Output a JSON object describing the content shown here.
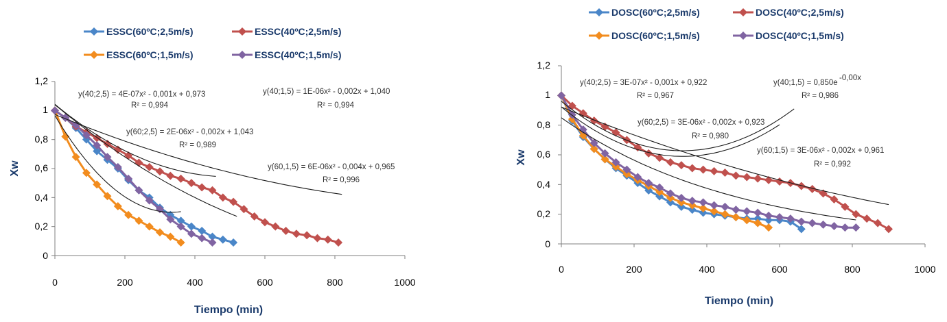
{
  "colors": {
    "blue": "#4a86c8",
    "red": "#c0504d",
    "orange": "#f28c1e",
    "purple": "#8064a2",
    "text": "#1a3a6b"
  },
  "chart_data": [
    {
      "type": "scatter",
      "xlabel": "Tiempo (min)",
      "ylabel": "Xw",
      "xlim": [
        0,
        1000
      ],
      "ylim": [
        0,
        1.2
      ],
      "xticks": [
        "0",
        "200",
        "400",
        "600",
        "800",
        "1000"
      ],
      "yticks": [
        "0",
        "0,2",
        "0,4",
        "0,6",
        "0,8",
        "1",
        "1,2"
      ],
      "legend": [
        [
          "ESSC(60ºC;2,5m/s)",
          "ESSC(40ºC;2,5m/s)"
        ],
        [
          "ESSC(60ºC;1,5m/s)",
          "ESSC(40ºC;1,5m/s)"
        ]
      ],
      "series": [
        {
          "name": "ESSC(60ºC;2,5m/s)",
          "color_key": "blue",
          "x": [
            0,
            30,
            60,
            90,
            120,
            150,
            180,
            210,
            240,
            270,
            300,
            330,
            360,
            390,
            420,
            450,
            480,
            510
          ],
          "y": [
            1,
            0.95,
            0.88,
            0.8,
            0.72,
            0.66,
            0.6,
            0.52,
            0.45,
            0.4,
            0.33,
            0.28,
            0.24,
            0.2,
            0.17,
            0.13,
            0.11,
            0.09
          ]
        },
        {
          "name": "ESSC(40ºC;2,5m/s)",
          "color_key": "red",
          "x": [
            0,
            30,
            60,
            90,
            120,
            150,
            180,
            210,
            240,
            270,
            300,
            330,
            360,
            390,
            420,
            450,
            480,
            510,
            540,
            570,
            600,
            630,
            660,
            690,
            720,
            750,
            780,
            810
          ],
          "y": [
            1,
            0.95,
            0.89,
            0.85,
            0.81,
            0.77,
            0.73,
            0.69,
            0.64,
            0.61,
            0.58,
            0.55,
            0.53,
            0.5,
            0.47,
            0.45,
            0.4,
            0.37,
            0.32,
            0.27,
            0.23,
            0.2,
            0.17,
            0.15,
            0.14,
            0.12,
            0.11,
            0.09
          ]
        },
        {
          "name": "ESSC(60ºC;1,5m/s)",
          "color_key": "orange",
          "x": [
            0,
            30,
            60,
            90,
            120,
            150,
            180,
            210,
            240,
            270,
            300,
            330,
            360
          ],
          "y": [
            1,
            0.82,
            0.68,
            0.57,
            0.49,
            0.41,
            0.34,
            0.28,
            0.24,
            0.2,
            0.16,
            0.13,
            0.09
          ]
        },
        {
          "name": "ESSC(40ºC;1,5m/s)",
          "color_key": "purple",
          "x": [
            0,
            30,
            60,
            90,
            120,
            150,
            180,
            210,
            240,
            270,
            300,
            330,
            360,
            390,
            420,
            450
          ],
          "y": [
            1,
            0.95,
            0.9,
            0.83,
            0.76,
            0.68,
            0.61,
            0.53,
            0.45,
            0.38,
            0.32,
            0.25,
            0.2,
            0.15,
            0.12,
            0.09
          ]
        }
      ],
      "equations": [
        {
          "text": "y(40;2,5) = 4E-07x² - 0,001x + 0,973",
          "r2": "R² = 0,994"
        },
        {
          "text": "y(40;1,5) = 1E-06x² - 0,002x + 1,040",
          "r2": "R² = 0,994"
        },
        {
          "text": "y(60;2,5) = 2E-06x² - 0,002x + 1,043",
          "r2": "R² = 0,989"
        },
        {
          "text": "y(60,1,5) = 6E-06x² - 0,004x + 0,965",
          "r2": "R² = 0,996"
        }
      ]
    },
    {
      "type": "scatter",
      "xlabel": "Tiempo (min)",
      "ylabel": "Xw",
      "xlim": [
        0,
        1000
      ],
      "ylim": [
        0,
        1.2
      ],
      "xticks": [
        "0",
        "200",
        "400",
        "600",
        "800",
        "1000"
      ],
      "yticks": [
        "0",
        "0,2",
        "0,4",
        "0,6",
        "0,8",
        "1",
        "1,2"
      ],
      "legend": [
        [
          "DOSC(60ºC;2,5m/s)",
          "DOSC(40ºC;2,5m/s)"
        ],
        [
          "DOSC(60ºC;1,5m/s)",
          "DOSC(40ºC;1,5m/s)"
        ]
      ],
      "series": [
        {
          "name": "DOSC(60ºC;2,5m/s)",
          "color_key": "blue",
          "x": [
            0,
            30,
            60,
            90,
            120,
            150,
            180,
            210,
            240,
            270,
            300,
            330,
            360,
            390,
            420,
            450,
            480,
            510,
            540,
            570,
            600,
            630,
            660
          ],
          "y": [
            1,
            0.83,
            0.72,
            0.64,
            0.57,
            0.51,
            0.46,
            0.41,
            0.36,
            0.32,
            0.28,
            0.25,
            0.23,
            0.21,
            0.2,
            0.19,
            0.18,
            0.17,
            0.17,
            0.16,
            0.16,
            0.15,
            0.1
          ]
        },
        {
          "name": "DOSC(40ºC;2,5m/s)",
          "color_key": "red",
          "x": [
            0,
            30,
            60,
            90,
            120,
            150,
            180,
            210,
            240,
            270,
            300,
            330,
            360,
            390,
            420,
            450,
            480,
            510,
            540,
            570,
            600,
            630,
            660,
            690,
            720,
            750,
            780,
            810,
            840,
            870,
            900
          ],
          "y": [
            1,
            0.93,
            0.88,
            0.83,
            0.79,
            0.75,
            0.7,
            0.65,
            0.61,
            0.58,
            0.55,
            0.53,
            0.51,
            0.5,
            0.49,
            0.48,
            0.46,
            0.45,
            0.44,
            0.43,
            0.42,
            0.41,
            0.39,
            0.37,
            0.34,
            0.3,
            0.25,
            0.2,
            0.17,
            0.14,
            0.1
          ]
        },
        {
          "name": "DOSC(60ºC;1,5m/s)",
          "color_key": "orange",
          "x": [
            0,
            30,
            60,
            90,
            120,
            150,
            180,
            210,
            240,
            270,
            300,
            330,
            360,
            390,
            420,
            450,
            480,
            510,
            540,
            570
          ],
          "y": [
            1,
            0.84,
            0.73,
            0.64,
            0.57,
            0.52,
            0.47,
            0.43,
            0.39,
            0.35,
            0.31,
            0.28,
            0.26,
            0.24,
            0.22,
            0.2,
            0.18,
            0.16,
            0.14,
            0.11
          ]
        },
        {
          "name": "DOSC(40ºC;1,5m/s)",
          "color_key": "purple",
          "x": [
            0,
            30,
            60,
            90,
            120,
            150,
            180,
            210,
            240,
            270,
            300,
            330,
            360,
            390,
            420,
            450,
            480,
            510,
            540,
            570,
            600,
            630,
            660,
            690,
            720,
            750,
            780,
            810
          ],
          "y": [
            1,
            0.87,
            0.77,
            0.68,
            0.61,
            0.55,
            0.5,
            0.45,
            0.41,
            0.38,
            0.34,
            0.31,
            0.29,
            0.28,
            0.26,
            0.25,
            0.23,
            0.22,
            0.21,
            0.19,
            0.18,
            0.17,
            0.15,
            0.14,
            0.13,
            0.12,
            0.11,
            0.11
          ]
        }
      ],
      "equations": [
        {
          "text": "y(40;2,5) = 3E-07x² - 0,001x + 0,922",
          "r2": "R² = 0,967"
        },
        {
          "text": "y(40;1,5) = 0,850e",
          "exp": "-0,00x",
          "r2": "R² = 0,986"
        },
        {
          "text": "y(60;2,5) = 3E-06x² - 0,002x + 0,923",
          "r2": "R² = 0,980"
        },
        {
          "text": "y(60;1,5) = 3E-06x² - 0,002x + 0,961",
          "r2": "R² = 0,992"
        }
      ]
    }
  ]
}
